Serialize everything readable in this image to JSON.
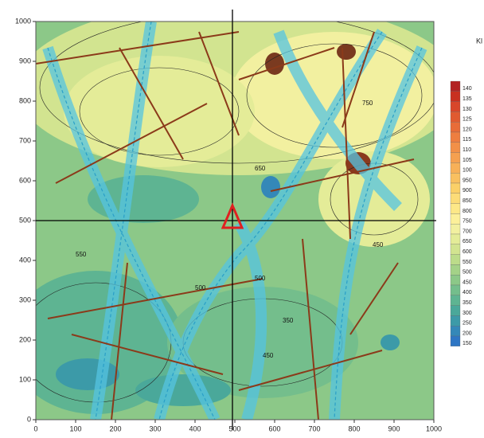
{
  "map": {
    "title": "Kl",
    "xlim": [
      0,
      1000
    ],
    "ylim": [
      0,
      1000
    ],
    "xticks": [
      0,
      100,
      200,
      300,
      400,
      500,
      600,
      700,
      800,
      900,
      1000
    ],
    "yticks": [
      0,
      100,
      200,
      300,
      400,
      500,
      600,
      700,
      800,
      900,
      1000
    ],
    "colorbar": {
      "labels": [
        "140",
        "135",
        "130",
        "125",
        "120",
        "115",
        "110",
        "105",
        "100",
        "950",
        "900",
        "850",
        "800",
        "750",
        "700",
        "650",
        "600",
        "550",
        "500",
        "450",
        "400",
        "350",
        "300",
        "250",
        "200",
        "150"
      ],
      "colors": [
        "#b22222",
        "#c83020",
        "#d8462a",
        "#e05a30",
        "#e86c38",
        "#ee7e40",
        "#f29048",
        "#f5a050",
        "#f7b058",
        "#f9c060",
        "#fbd068",
        "#fcdc78",
        "#fde888",
        "#fcf09a",
        "#f2f0a0",
        "#e4ec98",
        "#d2e490",
        "#bcdc8a",
        "#a4d288",
        "#8cc888",
        "#74be8c",
        "#5eb492",
        "#4aa89a",
        "#3c9aa8",
        "#3488b8",
        "#2e76c4"
      ]
    },
    "contour_labels": [
      "450",
      "500",
      "750",
      "350",
      "450",
      "500",
      "650",
      "550"
    ]
  }
}
